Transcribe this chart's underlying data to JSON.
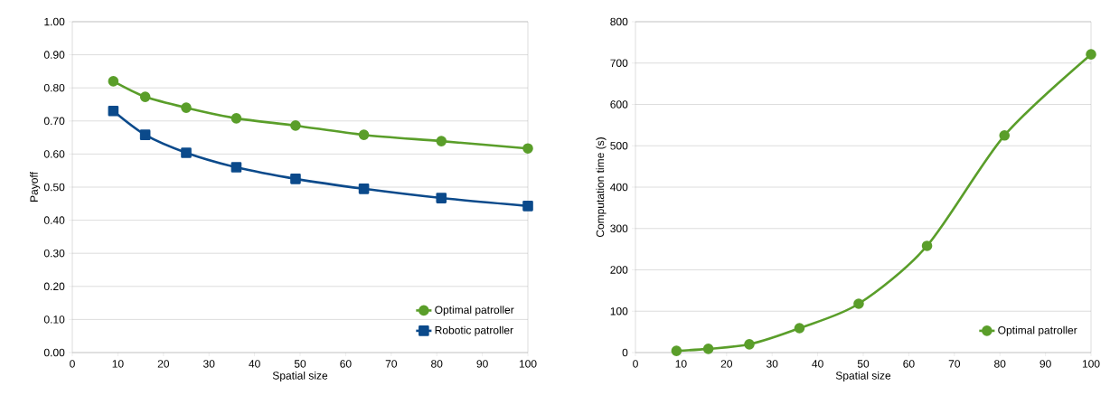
{
  "chart_data": [
    {
      "type": "line",
      "xlabel": "Spatial size",
      "ylabel": "Payoff",
      "x": [
        9,
        16,
        25,
        36,
        49,
        64,
        81,
        100
      ],
      "series": [
        {
          "name": "Optimal patroller",
          "color": "#5a9e2a",
          "marker": "circle",
          "values": [
            0.82,
            0.773,
            0.74,
            0.708,
            0.686,
            0.658,
            0.639,
            0.617
          ]
        },
        {
          "name": "Robotic patroller",
          "color": "#0b4a8b",
          "marker": "square",
          "values": [
            0.73,
            0.658,
            0.604,
            0.56,
            0.525,
            0.495,
            0.467,
            0.443
          ]
        }
      ],
      "xlim": [
        0,
        100
      ],
      "xticks": [
        0,
        10,
        20,
        30,
        40,
        50,
        60,
        70,
        80,
        90,
        100
      ],
      "ylim": [
        0,
        1
      ],
      "yticks": [
        {
          "value": 0,
          "label": "0.00"
        },
        {
          "value": 0.1,
          "label": "0.10"
        },
        {
          "value": 0.2,
          "label": "0.20"
        },
        {
          "value": 0.3,
          "label": "0.30"
        },
        {
          "value": 0.4,
          "label": "0.40"
        },
        {
          "value": 0.5,
          "label": "0.50"
        },
        {
          "value": 0.6,
          "label": "0.60"
        },
        {
          "value": 0.7,
          "label": "0.70"
        },
        {
          "value": 0.8,
          "label": "0.80"
        },
        {
          "value": 0.9,
          "label": "0.90"
        },
        {
          "value": 1,
          "label": "1.00"
        }
      ],
      "grid": "y",
      "legend": "bottom right",
      "line_style": "solid"
    },
    {
      "type": "line",
      "xlabel": "Spatial size",
      "ylabel": "Computation time (s)",
      "x": [
        9,
        16,
        25,
        36,
        49,
        64,
        81,
        100
      ],
      "series": [
        {
          "name": "Optimal patroller",
          "color": "#5a9e2a",
          "marker": "circle",
          "values": [
            4,
            9,
            20,
            59,
            118,
            258,
            525,
            721
          ]
        }
      ],
      "xlim": [
        0,
        100
      ],
      "xticks": [
        0,
        10,
        20,
        30,
        40,
        50,
        60,
        70,
        80,
        90,
        100
      ],
      "ylim": [
        0,
        800
      ],
      "yticks": [
        0,
        100,
        200,
        300,
        400,
        500,
        600,
        700,
        800
      ],
      "grid": "y",
      "legend": "bottom right",
      "line_style": "solid"
    }
  ]
}
